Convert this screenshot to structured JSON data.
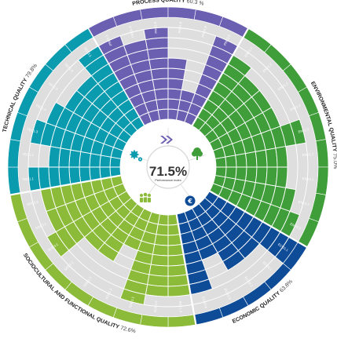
{
  "chart_data": {
    "type": "radial-bar",
    "rings": 10,
    "overall": {
      "value": "71.5%",
      "label": "Performance index"
    },
    "groups": [
      {
        "key": "process",
        "name": "PROCESS QUALITY",
        "score": "60.3 %",
        "color": "#6b5fb1",
        "criteria": [
          {
            "label": "PRO1.1",
            "value": 9
          },
          {
            "label": "PRO1.4",
            "value": 8
          },
          {
            "label": "PRO1.6",
            "value": 9
          },
          {
            "label": "PRO1.8",
            "value": 6
          },
          {
            "label": "PRO1.9",
            "value": 3
          },
          {
            "label": "PRO2.5",
            "value": 9
          }
        ]
      },
      {
        "key": "environmental",
        "name": "ENVIRONMENTAL QUALITY",
        "score": "75.0%",
        "color": "#3f9d3a",
        "criteria": [
          {
            "label": "ENV1.1",
            "value": 8
          },
          {
            "label": "ENV1.2",
            "value": 7
          },
          {
            "label": "ENV1.3",
            "value": 7
          },
          {
            "label": "ENV1.4",
            "value": 7
          },
          {
            "label": "ENV1.5",
            "value": 9
          },
          {
            "label": "ENV1.7",
            "value": 7
          },
          {
            "label": "ENV2.1",
            "value": 7
          },
          {
            "label": "ENV2.2",
            "value": 8
          },
          {
            "label": "ENV2.3",
            "value": 9
          }
        ]
      },
      {
        "key": "economic",
        "name": "ECONOMIC QUALITY",
        "score": "63.8%",
        "color": "#0f4c97",
        "criteria": [
          {
            "label": "ECO1.1",
            "value": 10
          },
          {
            "label": "ECO2.1",
            "value": 7
          },
          {
            "label": "ECO2.2",
            "value": 7
          },
          {
            "label": "ECO2.3",
            "value": 5
          },
          {
            "label": "ECO2.4",
            "value": 8
          }
        ]
      },
      {
        "key": "sociocultural",
        "name": "SOCIOCULTURAL AND FUNCTIONAL QUALITY",
        "score": "72.6%",
        "color": "#8cbb39",
        "criteria": [
          {
            "label": "SOC1.4",
            "value": 8
          },
          {
            "label": "SOC1.6",
            "value": 8
          },
          {
            "label": "SOC1.1",
            "value": 9
          },
          {
            "label": "SOC1.2",
            "value": 4
          },
          {
            "label": "SOC1.3",
            "value": 6
          },
          {
            "label": "SOC2.1",
            "value": 6
          },
          {
            "label": "SOC3.1",
            "value": 9
          },
          {
            "label": "SOC3.2",
            "value": 8
          },
          {
            "label": "SOC3.3",
            "value": 8
          }
        ]
      },
      {
        "key": "technical",
        "name": "TECHNICAL QUALITY",
        "score": "79.8%",
        "color": "#0b9baf",
        "criteria": [
          {
            "label": "TEC1.1",
            "value": 9
          },
          {
            "label": "TEC1.2",
            "value": 7
          },
          {
            "label": "TEC1.3",
            "value": 9
          },
          {
            "label": "TEC1.4",
            "value": 8
          },
          {
            "label": "TEC1.5",
            "value": 7
          },
          {
            "label": "TEC1.6",
            "value": 7
          },
          {
            "label": "TEC3.1",
            "value": 9
          }
        ]
      }
    ]
  }
}
